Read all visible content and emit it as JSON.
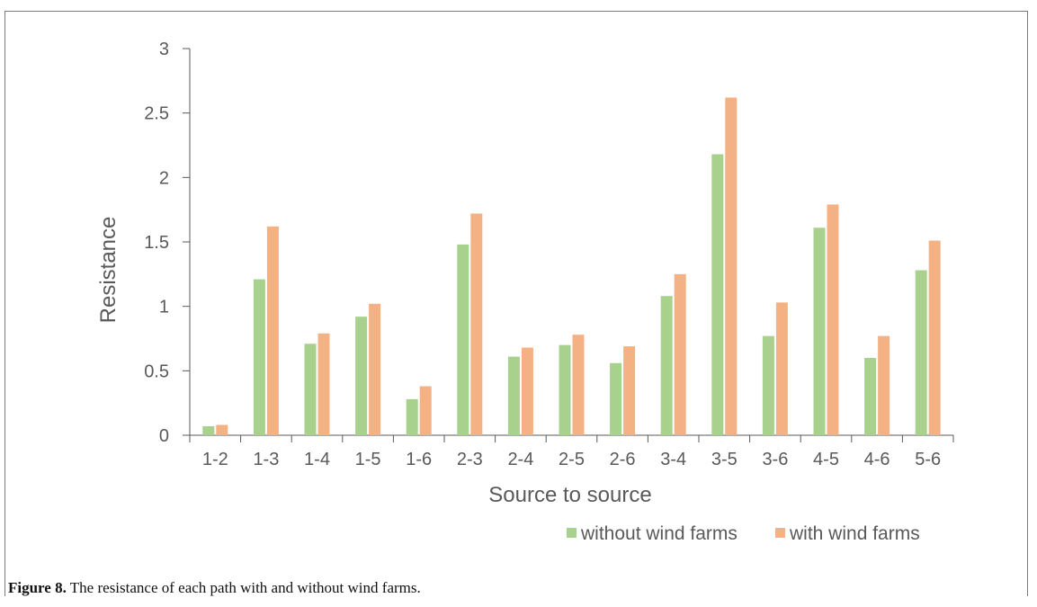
{
  "caption": {
    "label": "Figure 8.",
    "text": " The resistance of each path with and without wind farms."
  },
  "colors": {
    "without": "#a9d18e",
    "with": "#f4b183",
    "axis": "#595959"
  },
  "chart_data": {
    "type": "bar",
    "title": "",
    "xlabel": "Source to source",
    "ylabel": "Resistance",
    "ylim": [
      0,
      3
    ],
    "yticks": [
      0,
      0.5,
      1,
      1.5,
      2,
      2.5,
      3
    ],
    "ytick_labels": [
      "0",
      "0.5",
      "1",
      "1.5",
      "2",
      "2.5",
      "3"
    ],
    "grid": false,
    "legend_position": "bottom-right",
    "categories": [
      "1-2",
      "1-3",
      "1-4",
      "1-5",
      "1-6",
      "2-3",
      "2-4",
      "2-5",
      "2-6",
      "3-4",
      "3-5",
      "3-6",
      "4-5",
      "4-6",
      "5-6"
    ],
    "series": [
      {
        "name": "without wind farms",
        "color": "#a9d18e",
        "values": [
          0.07,
          1.21,
          0.71,
          0.92,
          0.28,
          1.48,
          0.61,
          0.7,
          0.56,
          1.08,
          2.18,
          0.77,
          1.61,
          0.6,
          1.28
        ]
      },
      {
        "name": "with wind farms",
        "color": "#f4b183",
        "values": [
          0.08,
          1.62,
          0.79,
          1.02,
          0.38,
          1.72,
          0.68,
          0.78,
          0.69,
          1.25,
          2.62,
          1.03,
          1.79,
          0.77,
          1.51
        ]
      }
    ]
  }
}
